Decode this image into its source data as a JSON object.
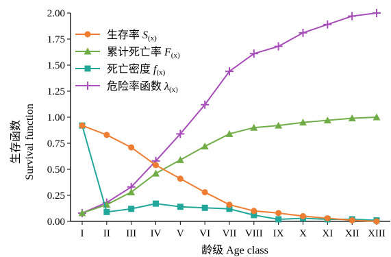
{
  "chart_data": {
    "type": "line",
    "categories": [
      "I",
      "II",
      "III",
      "IV",
      "V",
      "VI",
      "VII",
      "VIII",
      "IX",
      "X",
      "XI",
      "XII",
      "XIII"
    ],
    "xlabel": "龄级 Age class",
    "ylabel_cn": "生存函数",
    "ylabel_en": "Survival function",
    "ylim": [
      0,
      2.0
    ],
    "yticks": [
      0.0,
      0.25,
      0.5,
      0.75,
      1.0,
      1.25,
      1.5,
      1.75,
      2.0
    ],
    "ytick_labels": [
      "0.00",
      "0.25",
      "0.50",
      "0.75",
      "1.00",
      "1.25",
      "1.50",
      "1.75",
      "2.00"
    ],
    "grid": false,
    "legend_position": "top-left",
    "series": [
      {
        "name": "生存率 S(x)",
        "legend_cn": "生存率",
        "legend_sym": "S",
        "legend_sub": "(x)",
        "color": "#ee7d31",
        "marker": "circle",
        "values": [
          0.92,
          0.83,
          0.71,
          0.54,
          0.41,
          0.28,
          0.16,
          0.1,
          0.08,
          0.05,
          0.03,
          0.01,
          0.0
        ]
      },
      {
        "name": "累计死亡率 F(x)",
        "legend_cn": "累计死亡率",
        "legend_sym": "F",
        "legend_sub": "(x)",
        "color": "#70ad47",
        "marker": "triangle",
        "values": [
          0.08,
          0.16,
          0.28,
          0.46,
          0.59,
          0.72,
          0.84,
          0.9,
          0.92,
          0.95,
          0.97,
          0.99,
          1.0
        ]
      },
      {
        "name": "死亡密度 f(x)",
        "legend_cn": "死亡密度",
        "legend_sym": "f",
        "legend_sub": "(x)",
        "color": "#22a89b",
        "marker": "square",
        "values": [
          0.92,
          0.09,
          0.12,
          0.17,
          0.14,
          0.13,
          0.12,
          0.06,
          0.02,
          0.03,
          0.02,
          0.02,
          0.01
        ]
      },
      {
        "name": "危险率函数 λ(x)",
        "legend_cn": "危险率函数",
        "legend_sym": "λ",
        "legend_sub": "(x)",
        "color": "#a64db8",
        "marker": "plus",
        "values": [
          0.08,
          0.18,
          0.33,
          0.58,
          0.84,
          1.12,
          1.44,
          1.61,
          1.68,
          1.81,
          1.89,
          1.97,
          2.0
        ]
      }
    ]
  }
}
